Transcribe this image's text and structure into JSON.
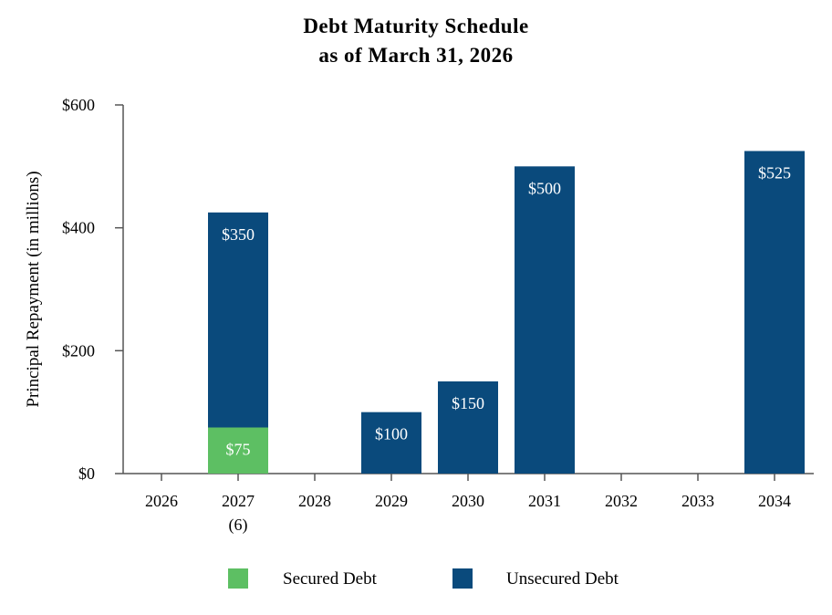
{
  "chart_data": {
    "type": "bar",
    "stacked": true,
    "title": "Debt Maturity Schedule",
    "subtitle": "as of March 31, 2026",
    "categories": [
      "2026",
      "2027",
      "2028",
      "2029",
      "2030",
      "2031",
      "2032",
      "2033",
      "2034"
    ],
    "category_notes": [
      "",
      "(6)",
      "",
      "",
      "",
      "",
      "",
      "",
      ""
    ],
    "series": [
      {
        "name": "Secured Debt",
        "color": "#5dbf63",
        "values": [
          0,
          75,
          0,
          0,
          0,
          0,
          0,
          0,
          0
        ],
        "labels": [
          "",
          "$75",
          "",
          "",
          "",
          "",
          "",
          "",
          ""
        ]
      },
      {
        "name": "Unsecured Debt",
        "color": "#0a4a7c",
        "values": [
          0,
          350,
          0,
          100,
          150,
          500,
          0,
          0,
          525
        ],
        "labels": [
          "",
          "$350",
          "",
          "$100",
          "$150",
          "$500",
          "",
          "",
          "$525"
        ]
      }
    ],
    "xlabel": "",
    "ylabel": "Principal Repayment (in millions)",
    "ylim": [
      0,
      600
    ],
    "yticks": [
      0,
      200,
      400,
      600
    ],
    "ytick_labels": [
      "$0",
      "$200",
      "$400",
      "$600"
    ],
    "legend_position": "bottom",
    "grid": false
  }
}
